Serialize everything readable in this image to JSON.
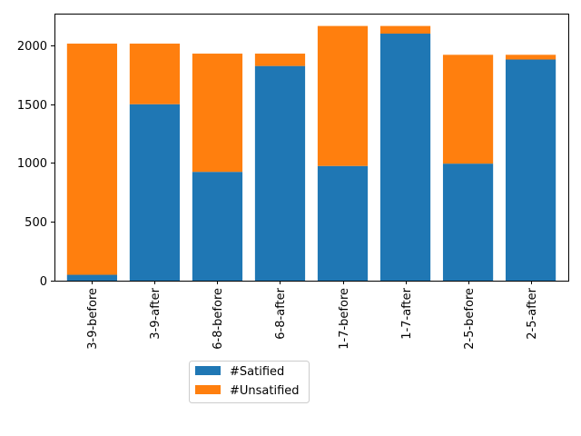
{
  "chart_data": {
    "type": "bar",
    "stacked": true,
    "categories": [
      "3-9-before",
      "3-9-after",
      "6-8-before",
      "6-8-after",
      "1-7-before",
      "1-7-after",
      "2-5-before",
      "2-5-after"
    ],
    "series": [
      {
        "name": "#Satified",
        "color": "#1f77b4",
        "values": [
          50,
          1500,
          925,
          1825,
          975,
          2100,
          995,
          1880
        ]
      },
      {
        "name": "#Unsatified",
        "color": "#ff7f0e",
        "values": [
          1965,
          515,
          1005,
          105,
          1190,
          65,
          925,
          40
        ]
      }
    ],
    "yticks": [
      0,
      500,
      1000,
      1500,
      2000
    ],
    "ylim": [
      0,
      2270
    ],
    "title": "",
    "xlabel": "",
    "ylabel": "",
    "grid": false,
    "legend": {
      "placement": "below-center-left"
    }
  }
}
